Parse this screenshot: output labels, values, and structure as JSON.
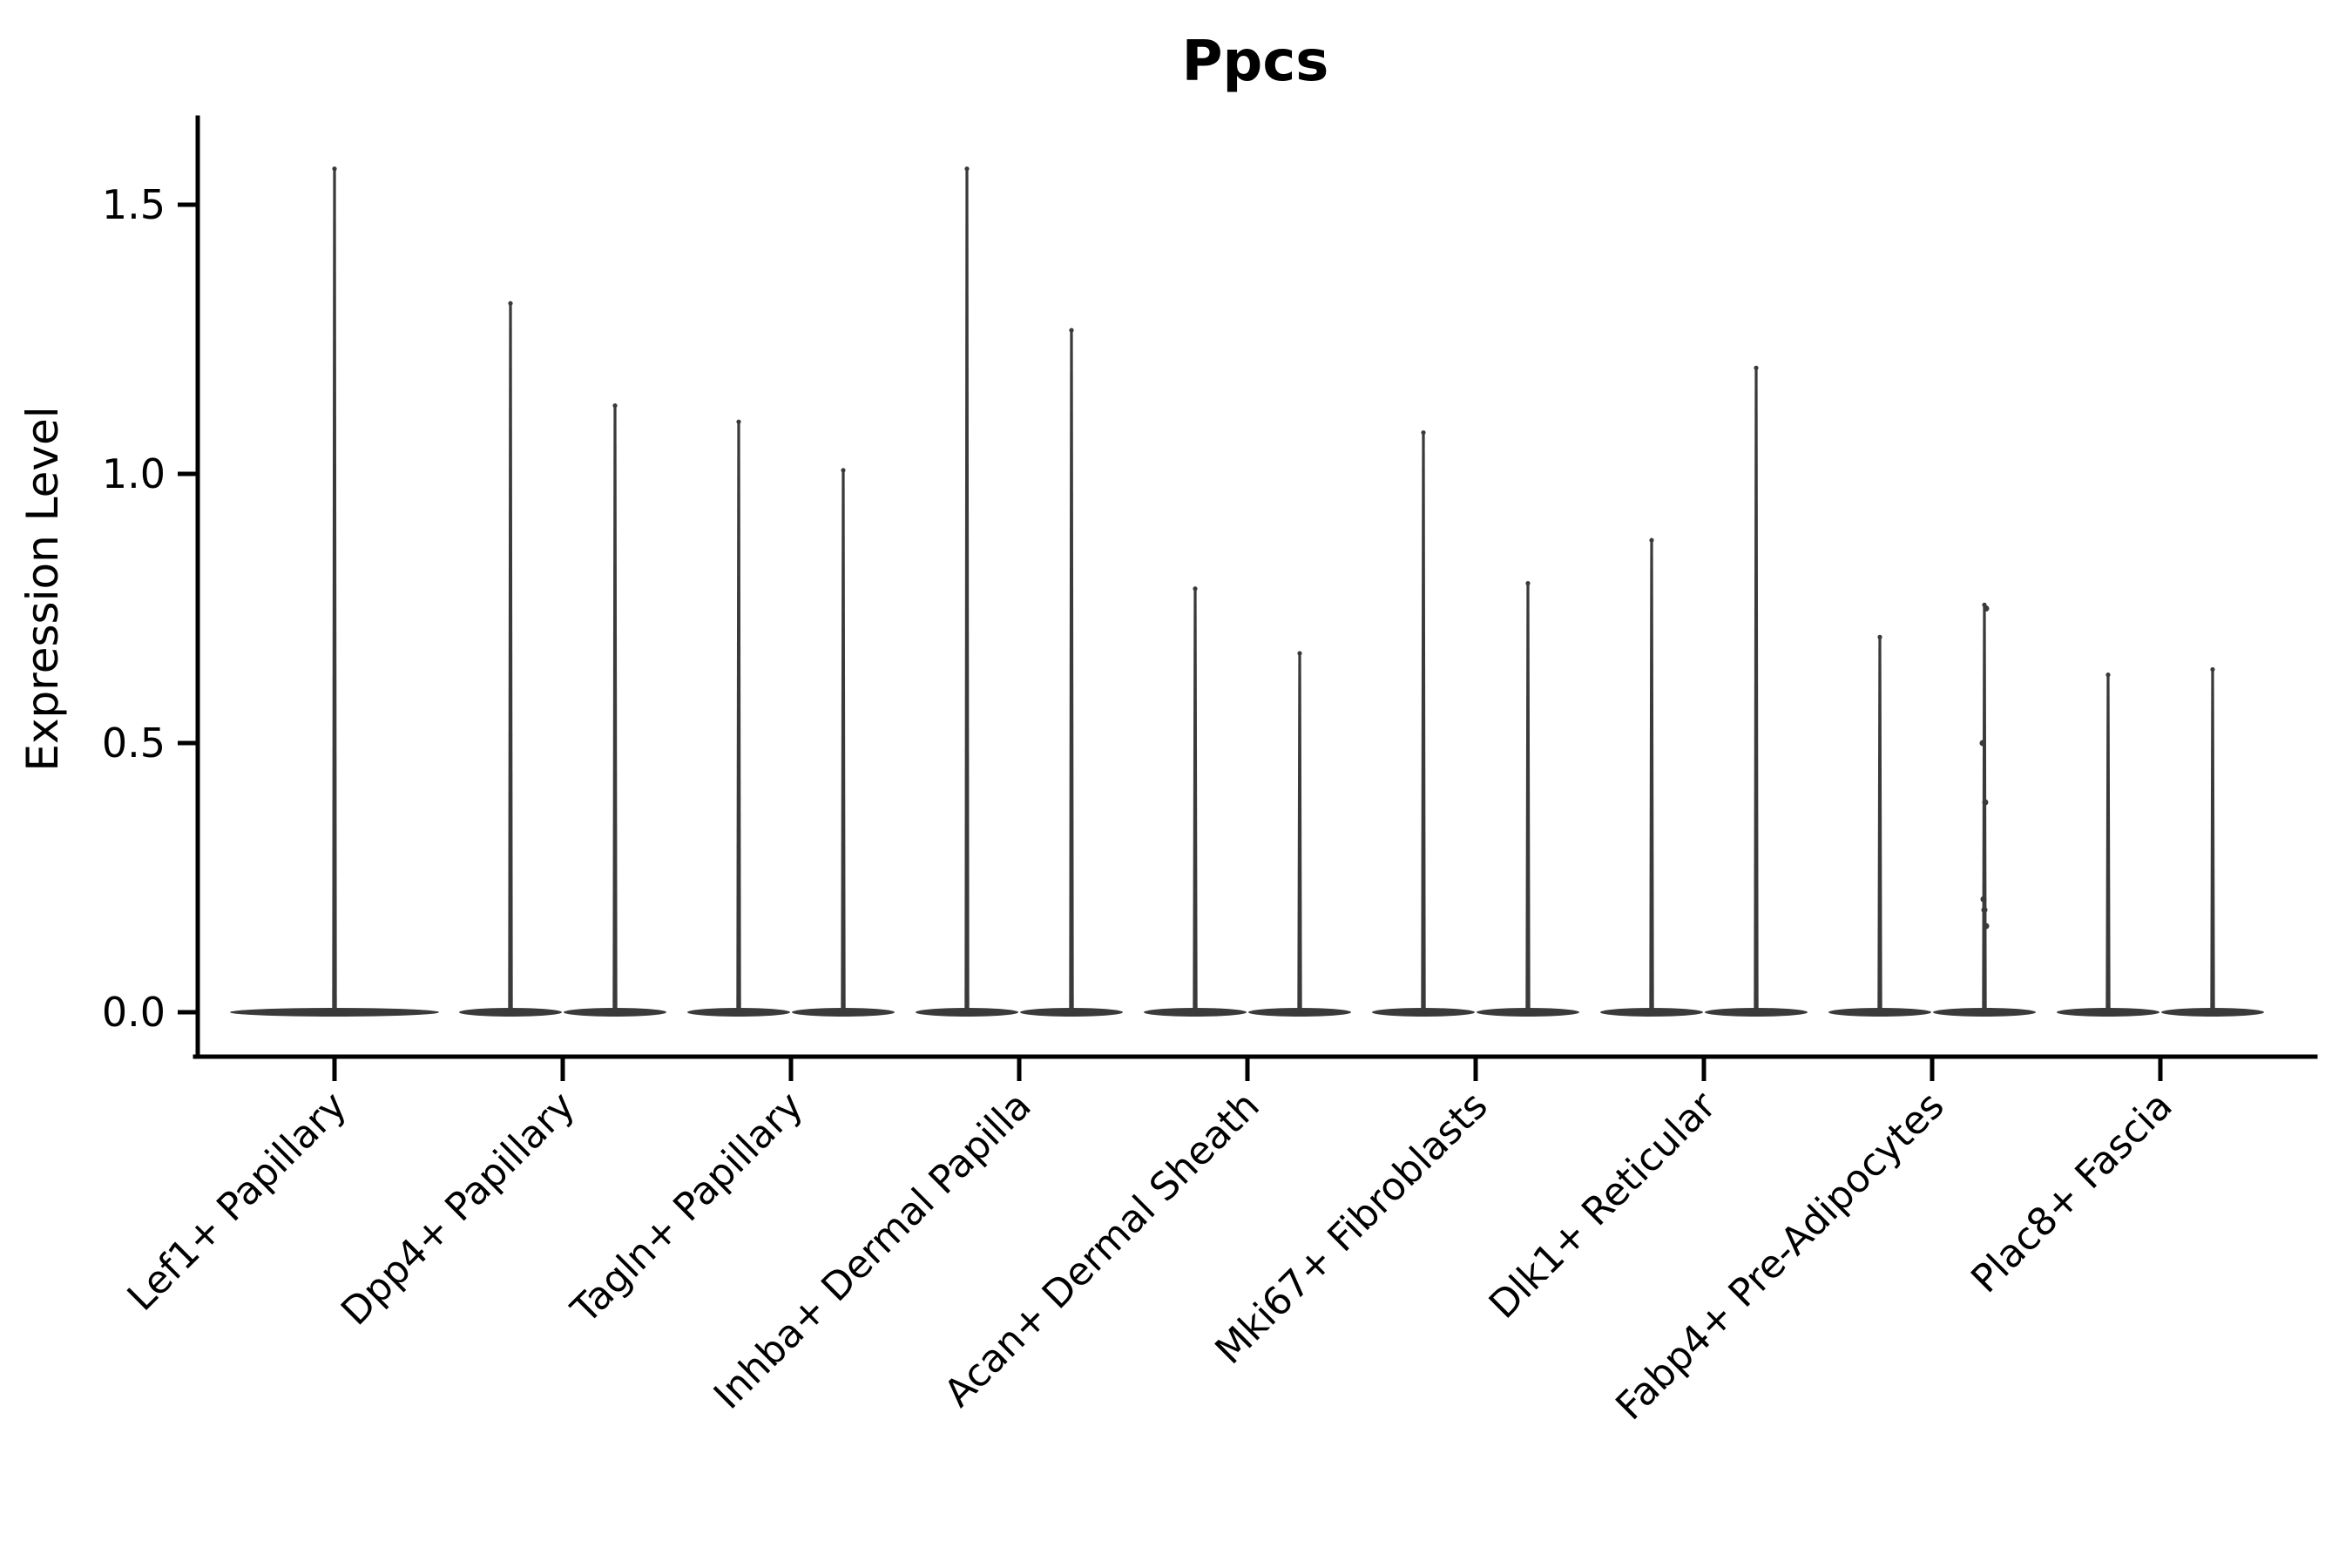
{
  "title": "Ppcs",
  "y_axis": {
    "label": "Expression Level"
  },
  "chart_data": {
    "type": "violin",
    "title": "Ppcs",
    "xlabel": "",
    "ylabel": "Expression Level",
    "ylim": [
      0,
      1.66
    ],
    "yticks": [
      0.0,
      0.5,
      1.0,
      1.5
    ],
    "grid": false,
    "legend": false,
    "x_tick_rotation": 45,
    "violin_color": "#3a3a3a",
    "axis_color": "#000000",
    "layout_note": "Each cell-type category shows narrow violin(s): density mass concentrated at 0 (flat lens on baseline) with a thin spike rising to the maximum expression value",
    "categories": [
      {
        "label": "Lef1+ Papillary",
        "violins": [
          {
            "max": 1.57
          }
        ]
      },
      {
        "label": "Dpp4+ Papillary",
        "violins": [
          {
            "max": 1.32
          },
          {
            "max": 1.13
          }
        ]
      },
      {
        "label": "Tagln+ Papillary",
        "violins": [
          {
            "max": 1.1
          },
          {
            "max": 1.01
          }
        ]
      },
      {
        "label": "Inhba+ Dermal Papilla",
        "violins": [
          {
            "max": 1.57
          },
          {
            "max": 1.27
          }
        ]
      },
      {
        "label": "Acan+ Dermal Sheath",
        "violins": [
          {
            "max": 0.79
          },
          {
            "max": 0.67
          }
        ]
      },
      {
        "label": "Mki67+ Fibroblasts",
        "violins": [
          {
            "max": 1.08
          },
          {
            "max": 0.8
          }
        ]
      },
      {
        "label": "Dlk1+ Reticular",
        "violins": [
          {
            "max": 0.88
          },
          {
            "max": 1.2
          }
        ]
      },
      {
        "label": "Fabp4+ Pre-Adipocytes",
        "violins": [
          {
            "max": 0.7
          },
          {
            "max": 0.76,
            "points": [
              0.75,
              0.5,
              0.39,
              0.21,
              0.19,
              0.16
            ]
          }
        ]
      },
      {
        "label": "Plac8+ Fascia",
        "violins": [
          {
            "max": 0.63
          },
          {
            "max": 0.64
          }
        ]
      }
    ]
  }
}
